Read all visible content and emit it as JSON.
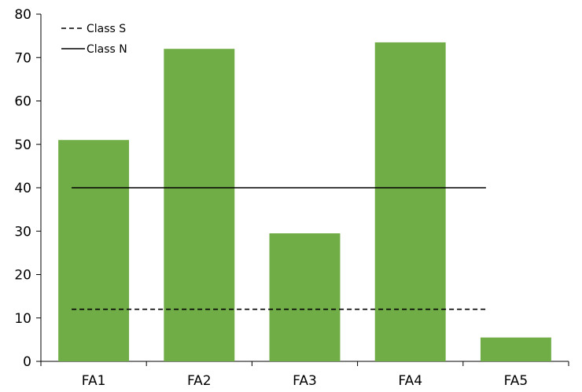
{
  "chart_data": {
    "type": "bar",
    "categories": [
      "FA1",
      "FA2",
      "FA3",
      "FA4",
      "FA5"
    ],
    "values": [
      51,
      72,
      29.5,
      73.5,
      5.5
    ],
    "bar_color": "#70AD47",
    "ylim": [
      0,
      80
    ],
    "yticks": [
      0,
      10,
      20,
      30,
      40,
      50,
      60,
      70,
      80
    ],
    "title": "",
    "xlabel": "",
    "ylabel": "",
    "grid": false,
    "legend_position": "top-left",
    "reference_lines": [
      {
        "name": "Class S",
        "value": 12,
        "style": "dashed",
        "color": "#000000"
      },
      {
        "name": "Class N",
        "value": 40,
        "style": "solid",
        "color": "#000000"
      }
    ]
  }
}
